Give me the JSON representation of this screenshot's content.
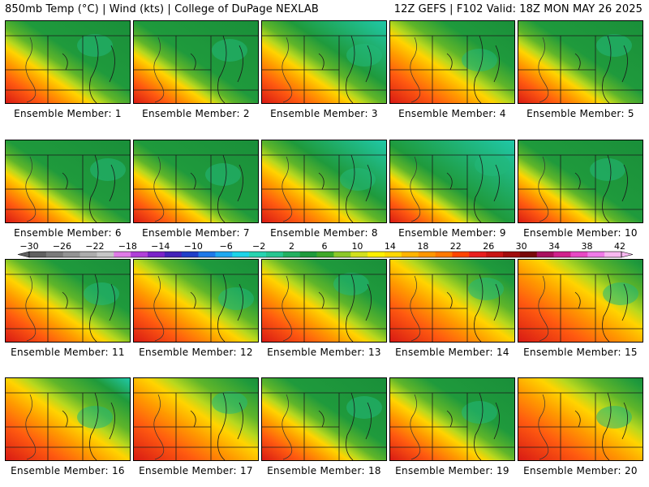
{
  "header": {
    "title": "850mb Temp (°C) | Wind (kts) | College of DuPage NEXLAB",
    "run_info": "12Z GEFS | F102 Valid: 18Z MON MAY 26 2025"
  },
  "colorbar": {
    "labels": [
      "−30",
      "−26",
      "−22",
      "−18",
      "−14",
      "−10",
      "−6",
      "−2",
      "2",
      "6",
      "10",
      "14",
      "18",
      "22",
      "26",
      "30",
      "34",
      "38",
      "42"
    ],
    "colors": [
      "#606060",
      "#7a7a7a",
      "#939393",
      "#acacac",
      "#c6c6c6",
      "#e07ae6",
      "#b040d8",
      "#7a22c8",
      "#4422b8",
      "#1f3ec8",
      "#1e78e8",
      "#1ea8f0",
      "#1cd4e8",
      "#27d4b0",
      "#26c690",
      "#22b060",
      "#1e9a3c",
      "#3ea828",
      "#8cc828",
      "#d2e01e",
      "#fff000",
      "#ffd800",
      "#ffb400",
      "#ff9600",
      "#ff7800",
      "#ff4400",
      "#e81e1e",
      "#c81414",
      "#a00c0c",
      "#780808",
      "#a8105e",
      "#d0208c",
      "#e848c4",
      "#f07ae8",
      "#f8b8f0"
    ]
  },
  "members": [
    {
      "label": "Ensemble Member: 1"
    },
    {
      "label": "Ensemble Member: 2"
    },
    {
      "label": "Ensemble Member: 3"
    },
    {
      "label": "Ensemble Member: 4"
    },
    {
      "label": "Ensemble Member: 5"
    },
    {
      "label": "Ensemble Member: 6"
    },
    {
      "label": "Ensemble Member: 7"
    },
    {
      "label": "Ensemble Member: 8"
    },
    {
      "label": "Ensemble Member: 9"
    },
    {
      "label": "Ensemble Member: 10"
    },
    {
      "label": "Ensemble Member: 11"
    },
    {
      "label": "Ensemble Member: 12"
    },
    {
      "label": "Ensemble Member: 13"
    },
    {
      "label": "Ensemble Member: 14"
    },
    {
      "label": "Ensemble Member: 15"
    },
    {
      "label": "Ensemble Member: 16"
    },
    {
      "label": "Ensemble Member: 17"
    },
    {
      "label": "Ensemble Member: 18"
    },
    {
      "label": "Ensemble Member: 19"
    },
    {
      "label": "Ensemble Member: 20"
    }
  ]
}
